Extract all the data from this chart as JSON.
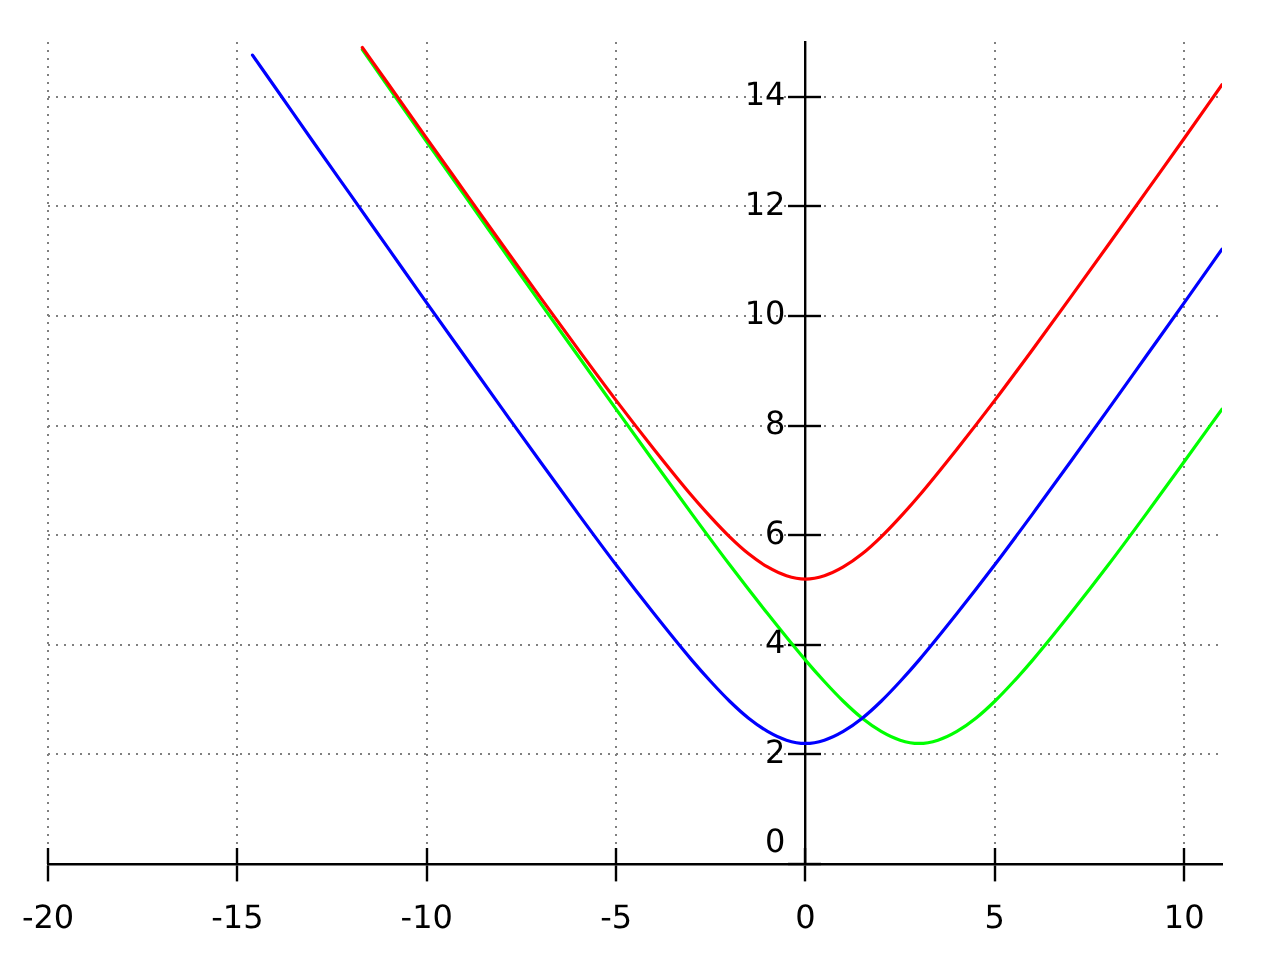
{
  "chart_data": {
    "type": "line",
    "marker": "none",
    "grid": true,
    "xlim": [
      -20,
      11
    ],
    "ylim": [
      0,
      15
    ],
    "xticks": [
      -20,
      -15,
      -10,
      -5,
      0,
      5,
      10
    ],
    "yticks": [
      0,
      2,
      4,
      6,
      8,
      10,
      12,
      14
    ],
    "series": [
      {
        "color": "#ff0000",
        "x": [
          -11.7,
          -11,
          -10,
          -9,
          -8,
          -7,
          -6,
          -5,
          -4,
          -3,
          -2.5,
          -2,
          -1.5,
          -1,
          -0.5,
          0,
          0.5,
          1,
          1.5,
          2,
          2.5,
          3,
          4,
          5,
          6,
          7,
          8,
          9,
          10,
          11
        ],
        "values": [
          14.9,
          14.22,
          13.24,
          12.27,
          11.3,
          10.34,
          9.39,
          8.46,
          7.57,
          6.72,
          6.33,
          5.97,
          5.66,
          5.42,
          5.26,
          5.2,
          5.26,
          5.42,
          5.66,
          5.97,
          6.33,
          6.72,
          7.57,
          8.46,
          9.39,
          10.34,
          11.3,
          12.27,
          13.24,
          14.22
        ]
      },
      {
        "color": "#0000ff",
        "x": [
          -14.6,
          -14,
          -13,
          -12,
          -11,
          -10,
          -9,
          -8,
          -7,
          -6,
          -5,
          -4,
          -3,
          -2.5,
          -2,
          -1.5,
          -1,
          -0.5,
          0,
          0.5,
          1,
          1.5,
          2,
          2.5,
          3,
          4,
          5,
          6,
          7,
          8,
          9,
          10,
          11
        ],
        "values": [
          14.76,
          14.17,
          13.18,
          12.2,
          11.22,
          10.24,
          9.27,
          8.3,
          7.34,
          6.39,
          5.46,
          4.57,
          3.72,
          3.33,
          2.97,
          2.66,
          2.42,
          2.26,
          2.2,
          2.26,
          2.42,
          2.66,
          2.97,
          3.33,
          3.72,
          4.57,
          5.46,
          6.39,
          7.34,
          8.3,
          9.27,
          10.24,
          11.22
        ]
      },
      {
        "color": "#00ff00",
        "x": [
          -11.7,
          -11,
          -10,
          -9,
          -8,
          -7,
          -6,
          -5,
          -4,
          -3,
          -2,
          -1,
          0,
          0.5,
          1,
          1.5,
          2,
          2.5,
          3,
          3.5,
          4,
          4.5,
          5,
          5.5,
          6,
          7,
          8,
          9,
          10,
          11
        ],
        "values": [
          14.86,
          14.17,
          13.18,
          12.2,
          11.22,
          10.24,
          9.27,
          8.3,
          7.34,
          6.39,
          5.46,
          4.57,
          3.72,
          3.33,
          2.97,
          2.66,
          2.42,
          2.26,
          2.2,
          2.26,
          2.42,
          2.66,
          2.97,
          3.33,
          3.72,
          4.57,
          5.46,
          6.39,
          7.34,
          8.3
        ]
      }
    ]
  }
}
